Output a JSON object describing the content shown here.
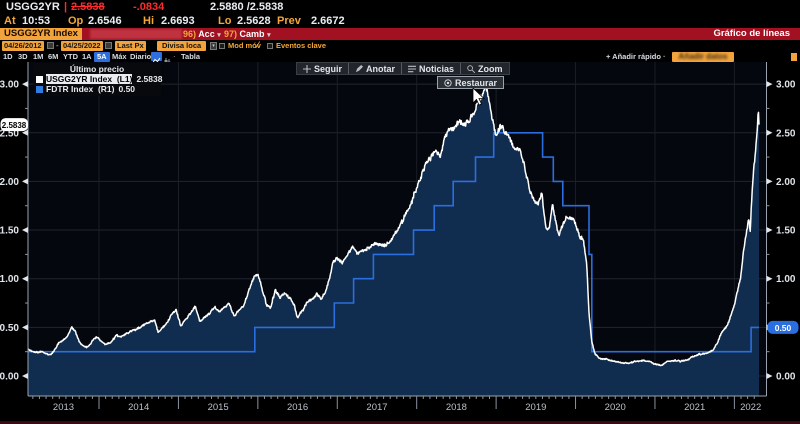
{
  "topbar": {
    "ticker": "USGG2YR",
    "price": "2.5838",
    "change": "-.0834",
    "bid_ask": "2.5880 /2.5838",
    "at_label": "At",
    "at_value": "10:53",
    "op_label": "Op",
    "op_value": "2.6546",
    "hi_label": "Hi",
    "hi_value": "2.6693",
    "lo_label": "Lo",
    "lo_value": "2.5628",
    "prev_label": "Prev",
    "prev_value": "2.6672"
  },
  "titlebar": {
    "security_button": "USGG2YR Index",
    "actions_num": "96)",
    "actions_label": "Acc",
    "edit_num": "97)",
    "edit_label": "Camb",
    "chart_type": "Gráfico de líneas"
  },
  "settings": {
    "date_from": "04/26/2012",
    "date_sep": "-",
    "date_to": "04/25/2022",
    "field": "Last Px",
    "currency": "Divisa loca",
    "mov_avg": "Mod móv",
    "key_events": "Eventos clave"
  },
  "rangebar": {
    "ranges": [
      "1D",
      "3D",
      "1M",
      "6M",
      "YTD",
      "1A",
      "5A",
      "Máx"
    ],
    "selected": "5A",
    "period": "Diario",
    "table": "Tabla",
    "add_quick": "+ Añadir rápido",
    "add_data": "Añadir datos"
  },
  "chart_toolbar": {
    "b1": "Seguir",
    "b2": "Anotar",
    "b3": "Noticias",
    "b4": "Zoom",
    "restore": "Restaurar"
  },
  "legend": {
    "title": "Último precio",
    "series": [
      {
        "name": "USGG2YR Index  (L1)",
        "value": "2.5838",
        "color": "#ffffff",
        "selected": true
      },
      {
        "name": "FDTR Index  (R1)",
        "value": "0.50",
        "color": "#2f7de1",
        "selected": false
      }
    ]
  },
  "axis_badges": {
    "left": "2.5838",
    "right": "0.50"
  },
  "chart_data": {
    "type": "line",
    "x_range": [
      2013.106,
      2022.31
    ],
    "x_years": [
      2013,
      2014,
      2015,
      2016,
      2017,
      2018,
      2019,
      2020,
      2021,
      2022
    ],
    "ylim": [
      0,
      3.0
    ],
    "ytick_step": 0.5,
    "ytick_minor": 0.25,
    "ytick_labels": [
      "0.00",
      "0.50",
      "1.00",
      "1.50",
      "2.00",
      "2.50",
      "3.00"
    ],
    "grid": true,
    "legend_position": "top-left",
    "series": [
      {
        "name": "USGG2YR Index",
        "axis": "L1",
        "color": "#ffffff",
        "fill": "#102c4e",
        "noisy": true,
        "last": 2.5838,
        "points": [
          [
            2013.106,
            0.27
          ],
          [
            2013.16,
            0.255
          ],
          [
            2013.22,
            0.245
          ],
          [
            2013.28,
            0.25
          ],
          [
            2013.34,
            0.23
          ],
          [
            2013.4,
            0.225
          ],
          [
            2013.45,
            0.28
          ],
          [
            2013.5,
            0.345
          ],
          [
            2013.55,
            0.375
          ],
          [
            2013.6,
            0.4
          ],
          [
            2013.655,
            0.5
          ],
          [
            2013.7,
            0.455
          ],
          [
            2013.75,
            0.35
          ],
          [
            2013.8,
            0.305
          ],
          [
            2013.86,
            0.3
          ],
          [
            2013.92,
            0.36
          ],
          [
            2013.97,
            0.395
          ],
          [
            2014.02,
            0.36
          ],
          [
            2014.08,
            0.32
          ],
          [
            2014.15,
            0.345
          ],
          [
            2014.22,
            0.425
          ],
          [
            2014.28,
            0.4
          ],
          [
            2014.34,
            0.43
          ],
          [
            2014.4,
            0.455
          ],
          [
            2014.46,
            0.47
          ],
          [
            2014.52,
            0.5
          ],
          [
            2014.58,
            0.53
          ],
          [
            2014.64,
            0.555
          ],
          [
            2014.7,
            0.57
          ],
          [
            2014.745,
            0.45
          ],
          [
            2014.8,
            0.5
          ],
          [
            2014.86,
            0.55
          ],
          [
            2014.92,
            0.64
          ],
          [
            2014.97,
            0.68
          ],
          [
            2015.03,
            0.52
          ],
          [
            2015.1,
            0.58
          ],
          [
            2015.16,
            0.66
          ],
          [
            2015.21,
            0.715
          ],
          [
            2015.27,
            0.56
          ],
          [
            2015.33,
            0.6
          ],
          [
            2015.4,
            0.655
          ],
          [
            2015.46,
            0.715
          ],
          [
            2015.52,
            0.66
          ],
          [
            2015.58,
            0.71
          ],
          [
            2015.64,
            0.745
          ],
          [
            2015.7,
            0.62
          ],
          [
            2015.76,
            0.67
          ],
          [
            2015.81,
            0.71
          ],
          [
            2015.86,
            0.81
          ],
          [
            2015.91,
            0.94
          ],
          [
            2015.96,
            1.03
          ],
          [
            2016.0,
            1.06
          ],
          [
            2016.05,
            0.9
          ],
          [
            2016.11,
            0.74
          ],
          [
            2016.16,
            0.7
          ],
          [
            2016.22,
            0.88
          ],
          [
            2016.28,
            0.8
          ],
          [
            2016.34,
            0.86
          ],
          [
            2016.4,
            0.8
          ],
          [
            2016.46,
            0.72
          ],
          [
            2016.5,
            0.6
          ],
          [
            2016.56,
            0.67
          ],
          [
            2016.62,
            0.75
          ],
          [
            2016.68,
            0.78
          ],
          [
            2016.74,
            0.84
          ],
          [
            2016.8,
            0.8
          ],
          [
            2016.85,
            0.86
          ],
          [
            2016.9,
            1.0
          ],
          [
            2016.95,
            1.18
          ],
          [
            2017.0,
            1.21
          ],
          [
            2017.06,
            1.16
          ],
          [
            2017.12,
            1.23
          ],
          [
            2017.19,
            1.33
          ],
          [
            2017.25,
            1.26
          ],
          [
            2017.31,
            1.29
          ],
          [
            2017.37,
            1.31
          ],
          [
            2017.43,
            1.35
          ],
          [
            2017.49,
            1.37
          ],
          [
            2017.55,
            1.33
          ],
          [
            2017.61,
            1.35
          ],
          [
            2017.67,
            1.39
          ],
          [
            2017.73,
            1.46
          ],
          [
            2017.79,
            1.54
          ],
          [
            2017.85,
            1.63
          ],
          [
            2017.91,
            1.73
          ],
          [
            2017.96,
            1.85
          ],
          [
            2018.01,
            1.94
          ],
          [
            2018.06,
            2.07
          ],
          [
            2018.12,
            2.17
          ],
          [
            2018.18,
            2.25
          ],
          [
            2018.24,
            2.29
          ],
          [
            2018.3,
            2.26
          ],
          [
            2018.36,
            2.46
          ],
          [
            2018.42,
            2.52
          ],
          [
            2018.48,
            2.56
          ],
          [
            2018.54,
            2.61
          ],
          [
            2018.6,
            2.58
          ],
          [
            2018.66,
            2.63
          ],
          [
            2018.72,
            2.7
          ],
          [
            2018.78,
            2.83
          ],
          [
            2018.84,
            2.9
          ],
          [
            2018.875,
            2.97
          ],
          [
            2018.91,
            2.83
          ],
          [
            2018.95,
            2.63
          ],
          [
            2019.0,
            2.5
          ],
          [
            2019.05,
            2.57
          ],
          [
            2019.11,
            2.51
          ],
          [
            2019.17,
            2.45
          ],
          [
            2019.23,
            2.31
          ],
          [
            2019.29,
            2.33
          ],
          [
            2019.35,
            2.18
          ],
          [
            2019.41,
            1.95
          ],
          [
            2019.47,
            1.82
          ],
          [
            2019.53,
            1.77
          ],
          [
            2019.58,
            1.87
          ],
          [
            2019.62,
            1.55
          ],
          [
            2019.67,
            1.5
          ],
          [
            2019.71,
            1.78
          ],
          [
            2019.75,
            1.6
          ],
          [
            2019.79,
            1.44
          ],
          [
            2019.84,
            1.57
          ],
          [
            2019.89,
            1.63
          ],
          [
            2019.95,
            1.61
          ],
          [
            2020.0,
            1.57
          ],
          [
            2020.05,
            1.44
          ],
          [
            2020.1,
            1.4
          ],
          [
            2020.14,
            1.15
          ],
          [
            2020.17,
            0.65
          ],
          [
            2020.2,
            0.38
          ],
          [
            2020.24,
            0.235
          ],
          [
            2020.3,
            0.18
          ],
          [
            2020.38,
            0.17
          ],
          [
            2020.46,
            0.16
          ],
          [
            2020.54,
            0.145
          ],
          [
            2020.62,
            0.13
          ],
          [
            2020.7,
            0.14
          ],
          [
            2020.78,
            0.15
          ],
          [
            2020.86,
            0.16
          ],
          [
            2020.93,
            0.15
          ],
          [
            2021.0,
            0.12
          ],
          [
            2021.08,
            0.11
          ],
          [
            2021.16,
            0.15
          ],
          [
            2021.24,
            0.16
          ],
          [
            2021.32,
            0.15
          ],
          [
            2021.4,
            0.16
          ],
          [
            2021.48,
            0.2
          ],
          [
            2021.56,
            0.22
          ],
          [
            2021.64,
            0.23
          ],
          [
            2021.72,
            0.26
          ],
          [
            2021.78,
            0.33
          ],
          [
            2021.84,
            0.44
          ],
          [
            2021.9,
            0.51
          ],
          [
            2021.95,
            0.6
          ],
          [
            2022.0,
            0.73
          ],
          [
            2022.04,
            0.87
          ],
          [
            2022.08,
            1.02
          ],
          [
            2022.12,
            1.32
          ],
          [
            2022.155,
            1.5
          ],
          [
            2022.18,
            1.62
          ],
          [
            2022.2,
            1.5
          ],
          [
            2022.225,
            1.92
          ],
          [
            2022.25,
            2.18
          ],
          [
            2022.27,
            2.33
          ],
          [
            2022.285,
            2.48
          ],
          [
            2022.298,
            2.65
          ],
          [
            2022.306,
            2.72
          ],
          [
            2022.31,
            2.5838
          ]
        ]
      },
      {
        "name": "FDTR Index",
        "axis": "R1",
        "color": "#2a6ee0",
        "step": true,
        "last": 0.5,
        "points": [
          [
            2013.106,
            0.25
          ],
          [
            2015.962,
            0.5
          ],
          [
            2016.962,
            0.75
          ],
          [
            2017.205,
            1.0
          ],
          [
            2017.455,
            1.25
          ],
          [
            2017.96,
            1.5
          ],
          [
            2018.22,
            1.75
          ],
          [
            2018.46,
            2.0
          ],
          [
            2018.74,
            2.25
          ],
          [
            2018.97,
            2.5
          ],
          [
            2019.585,
            2.25
          ],
          [
            2019.72,
            2.0
          ],
          [
            2019.84,
            1.75
          ],
          [
            2020.17,
            1.25
          ],
          [
            2020.205,
            0.25
          ],
          [
            2022.21,
            0.5
          ],
          [
            2022.31,
            0.5
          ]
        ]
      }
    ]
  }
}
